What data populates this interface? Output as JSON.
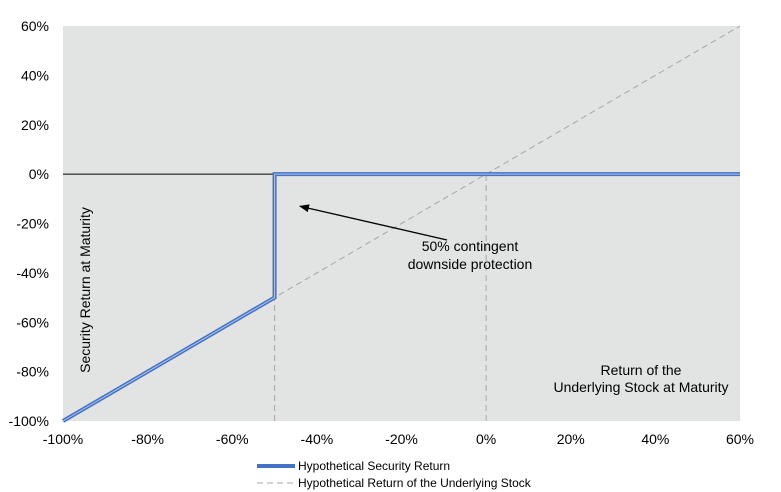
{
  "chart_data": {
    "type": "line",
    "x_ticks": [
      "-100%",
      "-80%",
      "-60%",
      "-40%",
      "-20%",
      "0%",
      "20%",
      "40%",
      "60%"
    ],
    "y_ticks": [
      "-100%",
      "-80%",
      "-60%",
      "-40%",
      "-20%",
      "0%",
      "20%",
      "40%",
      "60%"
    ],
    "xlim": [
      -100,
      60
    ],
    "ylim": [
      -100,
      60
    ],
    "grid": false,
    "legend_position": "bottom",
    "xlabel_lines": [
      "Return of the",
      "Underlying Stock at Maturity"
    ],
    "ylabel": "Security Return at Maturity",
    "annotation": {
      "lines": [
        "50% contingent",
        "downside protection"
      ],
      "arrow_target": {
        "x": -44,
        "y": -13
      }
    },
    "series": [
      {
        "name": "Hypothetical Security Return",
        "color": "#4472C4",
        "style": "solid",
        "x": [
          -100,
          -50,
          -50,
          60
        ],
        "y": [
          -100,
          -50,
          0,
          0
        ]
      },
      {
        "name": "Hypothetical Return of the Underlying Stock",
        "color": "#A6A6A6",
        "style": "dashed",
        "x": [
          -100,
          60
        ],
        "y": [
          -100,
          60
        ]
      }
    ],
    "reference_lines": [
      {
        "orientation": "vertical",
        "x": -50,
        "y_from": -100,
        "y_to": -50
      },
      {
        "orientation": "vertical",
        "x": 0,
        "y_from": -100,
        "y_to": 0
      }
    ],
    "colors": {
      "plot_background": "#E2E4E3",
      "zero_line": "#000000"
    }
  }
}
